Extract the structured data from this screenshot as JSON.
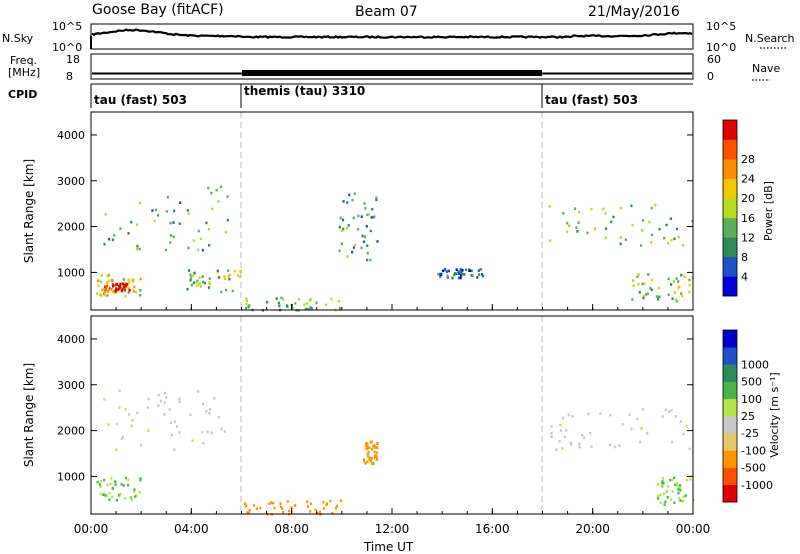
{
  "header": {
    "site": "Goose Bay (fitACF)",
    "beam": "Beam 07",
    "date": "21/May/2016"
  },
  "noise_panel": {
    "left_label": "N.Sky",
    "left_ticks": [
      "10^5",
      "10^0"
    ],
    "right_label": "N.Search",
    "right_ticks": [
      "10^5",
      "10^0"
    ]
  },
  "freq_panel": {
    "left_label_1": "Freq.",
    "left_label_2": "[MHz]",
    "left_ticks": [
      "18",
      "8"
    ],
    "right_label": "Nave",
    "right_ticks": [
      "60",
      "0"
    ]
  },
  "cpid_panel": {
    "label": "CPID",
    "segments": [
      {
        "name": "tau (fast) 503",
        "start": "00:00",
        "end": "06:00"
      },
      {
        "name": "themis (tau) 3310",
        "start": "06:00",
        "end": "18:00"
      },
      {
        "name": "tau (fast) 503",
        "start": "18:00",
        "end": "24:00"
      }
    ]
  },
  "x_axis": {
    "label": "Time UT",
    "ticks": [
      "00:00",
      "04:00",
      "08:00",
      "12:00",
      "16:00",
      "20:00",
      "00:00"
    ]
  },
  "power_panel": {
    "ylabel": "Slant Range [km]",
    "yticks": [
      "1000",
      "2000",
      "3000",
      "4000"
    ],
    "colorbar_label": "Power [dB]",
    "colorbar_ticks": [
      "4",
      "8",
      "12",
      "16",
      "20",
      "24",
      "28"
    ],
    "colorbar_colors": [
      "#0000dd",
      "#1e50c8",
      "#2e8b57",
      "#5ab05a",
      "#b4dc1e",
      "#f0c800",
      "#ff8c00",
      "#ff5000",
      "#e00000"
    ]
  },
  "velocity_panel": {
    "ylabel": "Slant Range [km]",
    "yticks": [
      "1000",
      "2000",
      "3000",
      "4000"
    ],
    "colorbar_label": "Velocity [m s⁻¹]",
    "colorbar_ticks": [
      "-1000",
      "-500",
      "-100",
      "-25",
      "25",
      "100",
      "500",
      "1000"
    ],
    "colorbar_colors": [
      "#e00000",
      "#ff5000",
      "#ff9600",
      "#e6c864",
      "#c8c8c8",
      "#b4e646",
      "#4ab44a",
      "#2e8b57",
      "#1e50c8",
      "#0000cc"
    ]
  },
  "chart_data": {
    "type": "heatmap",
    "time_range_hours": [
      0,
      24
    ],
    "slant_range_km": [
      180,
      4500
    ],
    "power_features": [
      {
        "t0": 0.2,
        "t1": 2.0,
        "r0": 500,
        "r1": 1000,
        "level": 0.55
      },
      {
        "t0": 0.5,
        "t1": 1.5,
        "r0": 600,
        "r1": 800,
        "level": 0.9
      },
      {
        "t0": 0.3,
        "t1": 5.5,
        "r0": 1500,
        "r1": 2900,
        "level": 0.35
      },
      {
        "t0": 3.8,
        "t1": 6.0,
        "r0": 600,
        "r1": 1100,
        "level": 0.45
      },
      {
        "t0": 6.0,
        "t1": 10.0,
        "r0": 200,
        "r1": 500,
        "level": 0.4
      },
      {
        "t0": 9.8,
        "t1": 11.4,
        "r0": 1300,
        "r1": 2800,
        "level": 0.3
      },
      {
        "t0": 13.8,
        "t1": 15.6,
        "r0": 900,
        "r1": 1100,
        "level": 0.2
      },
      {
        "t0": 18.2,
        "t1": 24.0,
        "r0": 1600,
        "r1": 2500,
        "level": 0.4
      },
      {
        "t0": 21.5,
        "t1": 24.0,
        "r0": 400,
        "r1": 1000,
        "level": 0.45
      }
    ],
    "velocity_features": [
      {
        "t0": 0.2,
        "t1": 2.0,
        "r0": 500,
        "r1": 1000,
        "v": 100
      },
      {
        "t0": 0.3,
        "t1": 5.5,
        "r0": 1500,
        "r1": 2900,
        "v": 0
      },
      {
        "t0": 6.0,
        "t1": 10.0,
        "r0": 200,
        "r1": 500,
        "v": -150
      },
      {
        "t0": 10.8,
        "t1": 11.4,
        "r0": 1300,
        "r1": 1800,
        "v": -400
      },
      {
        "t0": 18.2,
        "t1": 24.0,
        "r0": 1600,
        "r1": 2500,
        "v": 0
      },
      {
        "t0": 22.5,
        "t1": 24.0,
        "r0": 400,
        "r1": 1000,
        "v": 100
      }
    ]
  }
}
